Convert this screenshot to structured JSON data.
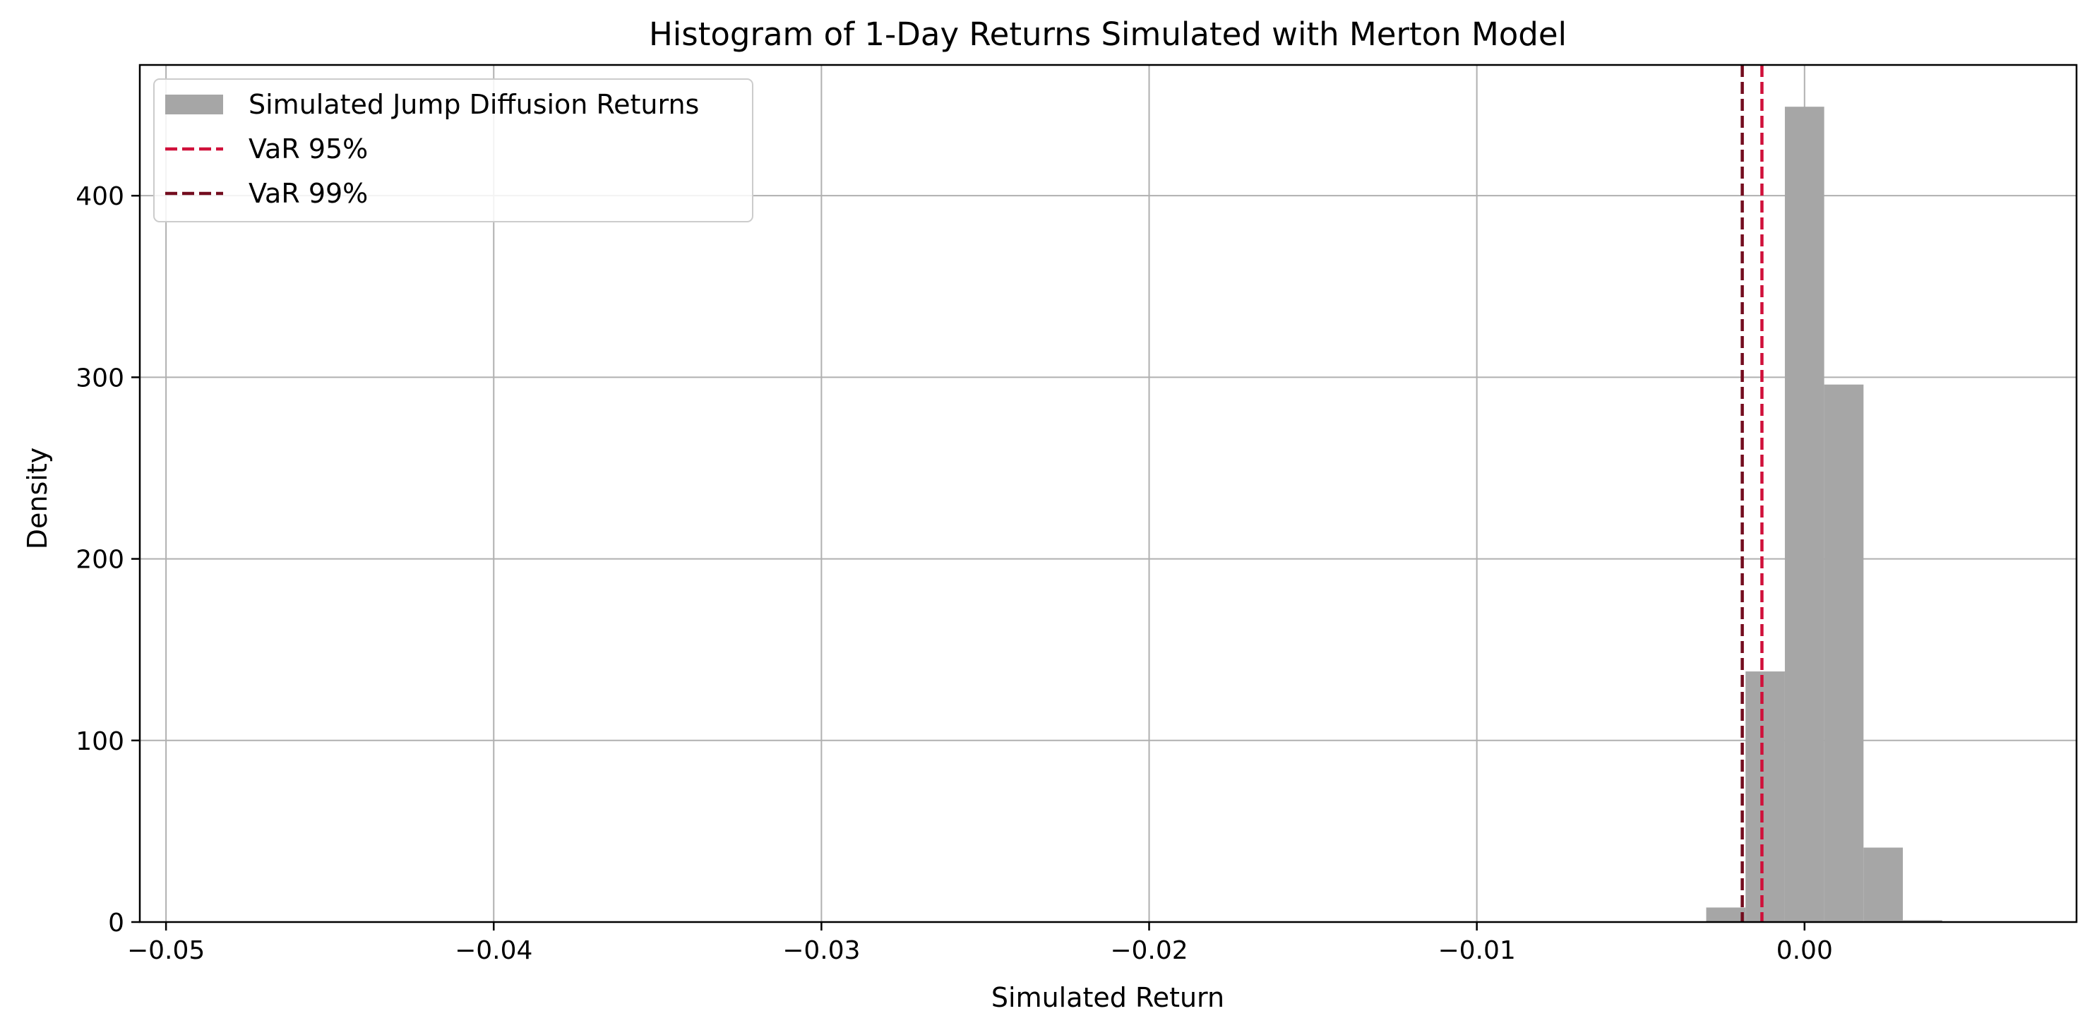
{
  "chart_data": {
    "type": "bar",
    "title": "Histogram of 1-Day Returns Simulated with Merton Model",
    "xlabel": "Simulated Return",
    "ylabel": "Density",
    "xlim": [
      -0.0508,
      0.0083
    ],
    "ylim": [
      0,
      472
    ],
    "xticks": [
      -0.05,
      -0.04,
      -0.03,
      -0.02,
      -0.01,
      0.0
    ],
    "xtick_labels": [
      "−0.05",
      "−0.04",
      "−0.03",
      "−0.02",
      "−0.01",
      "0.00"
    ],
    "yticks": [
      0,
      100,
      200,
      300,
      400
    ],
    "ytick_labels": [
      "0",
      "100",
      "200",
      "300",
      "400"
    ],
    "grid": true,
    "legend_position": "top-left",
    "bins": [
      {
        "x0": -0.003,
        "x1": -0.0018,
        "value": 8
      },
      {
        "x0": -0.0018,
        "x1": -0.0006,
        "value": 138
      },
      {
        "x0": -0.0006,
        "x1": 0.0006,
        "value": 449
      },
      {
        "x0": 0.0006,
        "x1": 0.0018,
        "value": 296
      },
      {
        "x0": 0.0018,
        "x1": 0.003,
        "value": 41
      },
      {
        "x0": 0.003,
        "x1": 0.0042,
        "value": 1
      }
    ],
    "series": [
      {
        "name": "Simulated Jump Diffusion Returns",
        "kind": "histogram",
        "color": "#a6a6a6"
      },
      {
        "name": "VaR 95%",
        "kind": "vline",
        "x": -0.0013,
        "color": "#d0103a",
        "style": "dashed"
      },
      {
        "name": "VaR 99%",
        "kind": "vline",
        "x": -0.0019,
        "color": "#730c1e",
        "style": "dashed"
      }
    ]
  }
}
